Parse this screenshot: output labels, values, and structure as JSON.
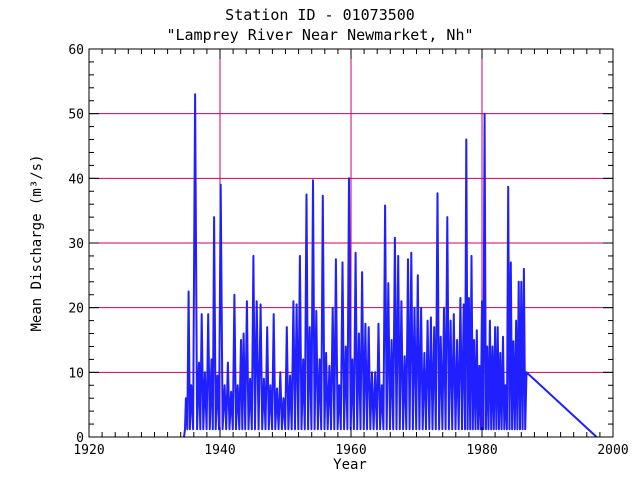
{
  "chart_data": {
    "type": "line",
    "title_lines": [
      "Station ID - 01073500",
      "\"Lamprey River Near Newmarket, Nh\""
    ],
    "xlabel": "Year",
    "ylabel": "Mean Discharge (m³/s)",
    "xlim": [
      1920,
      2000
    ],
    "ylim": [
      0,
      60
    ],
    "xticks": [
      1920,
      1940,
      1960,
      1980,
      2000
    ],
    "yticks": [
      0,
      10,
      20,
      30,
      40,
      50,
      60
    ],
    "x_minor_step": 2,
    "y_minor_step": 2,
    "vertical_grid_at": [
      1940,
      1960,
      1980
    ],
    "horizontal_grid_at": [
      10,
      20,
      30,
      40,
      50
    ],
    "colors": {
      "series": "#1f1fff",
      "grid": "#cc0066",
      "axis": "#000000"
    },
    "series": [
      {
        "peaks": [
          [
            1934.8,
            6.0
          ],
          [
            1935.2,
            22.5
          ],
          [
            1935.6,
            8.0
          ],
          [
            1936.2,
            53.0
          ],
          [
            1936.8,
            11.5
          ],
          [
            1937.2,
            19.0
          ],
          [
            1937.7,
            10.0
          ],
          [
            1938.2,
            19.0
          ],
          [
            1938.7,
            12.0
          ],
          [
            1939.1,
            34.0
          ],
          [
            1939.6,
            9.5
          ],
          [
            1940.1,
            39.0
          ],
          [
            1940.7,
            8.0
          ],
          [
            1941.2,
            11.5
          ],
          [
            1941.7,
            7.0
          ],
          [
            1942.2,
            22.0
          ],
          [
            1942.7,
            8.0
          ],
          [
            1943.2,
            15.0
          ],
          [
            1943.6,
            16.0
          ],
          [
            1944.1,
            21.0
          ],
          [
            1944.6,
            9.0
          ],
          [
            1945.1,
            28.0
          ],
          [
            1945.6,
            21.0
          ],
          [
            1946.2,
            20.5
          ],
          [
            1946.7,
            9.0
          ],
          [
            1947.2,
            17.0
          ],
          [
            1947.7,
            8.0
          ],
          [
            1948.2,
            19.0
          ],
          [
            1948.7,
            7.5
          ],
          [
            1949.2,
            10.0
          ],
          [
            1949.7,
            6.0
          ],
          [
            1950.2,
            17.0
          ],
          [
            1950.7,
            9.5
          ],
          [
            1951.2,
            21.0
          ],
          [
            1951.7,
            20.5
          ],
          [
            1952.2,
            28.0
          ],
          [
            1952.7,
            12.0
          ],
          [
            1953.2,
            37.5
          ],
          [
            1953.7,
            17.0
          ],
          [
            1954.2,
            39.7
          ],
          [
            1954.7,
            19.5
          ],
          [
            1955.2,
            12.0
          ],
          [
            1955.7,
            37.3
          ],
          [
            1956.2,
            13.0
          ],
          [
            1956.7,
            11.0
          ],
          [
            1957.2,
            20.0
          ],
          [
            1957.7,
            27.5
          ],
          [
            1958.2,
            8.0
          ],
          [
            1958.7,
            27.0
          ],
          [
            1959.2,
            14.0
          ],
          [
            1959.7,
            40.0
          ],
          [
            1960.2,
            12.0
          ],
          [
            1960.7,
            28.5
          ],
          [
            1961.2,
            16.0
          ],
          [
            1961.7,
            25.5
          ],
          [
            1962.2,
            17.5
          ],
          [
            1962.7,
            17.0
          ],
          [
            1963.2,
            10.0
          ],
          [
            1963.7,
            10.0
          ],
          [
            1964.2,
            17.5
          ],
          [
            1964.7,
            8.0
          ],
          [
            1965.2,
            35.8
          ],
          [
            1965.7,
            23.8
          ],
          [
            1966.2,
            15.0
          ],
          [
            1966.7,
            30.8
          ],
          [
            1967.2,
            28.0
          ],
          [
            1967.7,
            21.0
          ],
          [
            1968.2,
            12.5
          ],
          [
            1968.7,
            27.5
          ],
          [
            1969.2,
            28.5
          ],
          [
            1969.7,
            20.0
          ],
          [
            1970.2,
            25.0
          ],
          [
            1970.7,
            20.0
          ],
          [
            1971.2,
            13.0
          ],
          [
            1971.7,
            18.0
          ],
          [
            1972.2,
            18.5
          ],
          [
            1972.7,
            17.0
          ],
          [
            1973.2,
            37.7
          ],
          [
            1973.7,
            15.5
          ],
          [
            1974.2,
            20.0
          ],
          [
            1974.7,
            34.0
          ],
          [
            1975.2,
            18.0
          ],
          [
            1975.7,
            19.0
          ],
          [
            1976.2,
            15.0
          ],
          [
            1976.7,
            21.5
          ],
          [
            1977.2,
            20.5
          ],
          [
            1977.6,
            46.0
          ],
          [
            1978.0,
            21.5
          ],
          [
            1978.4,
            28.0
          ],
          [
            1978.8,
            15.0
          ],
          [
            1979.2,
            16.5
          ],
          [
            1979.6,
            11.0
          ],
          [
            1980.0,
            21.0
          ],
          [
            1980.4,
            50.0
          ],
          [
            1980.8,
            14.0
          ],
          [
            1981.2,
            18.0
          ],
          [
            1981.6,
            14.0
          ],
          [
            1982.0,
            17.0
          ],
          [
            1982.4,
            17.0
          ],
          [
            1982.8,
            13.0
          ],
          [
            1983.2,
            15.5
          ],
          [
            1983.6,
            8.0
          ],
          [
            1984.0,
            38.7
          ],
          [
            1984.4,
            27.0
          ],
          [
            1984.8,
            14.8
          ],
          [
            1985.2,
            18.0
          ],
          [
            1985.6,
            24.0
          ],
          [
            1986.0,
            24.0
          ],
          [
            1986.4,
            26.0
          ],
          [
            1986.8,
            10.0
          ]
        ],
        "range": [
          1934.5,
          1997.5
        ]
      }
    ]
  }
}
